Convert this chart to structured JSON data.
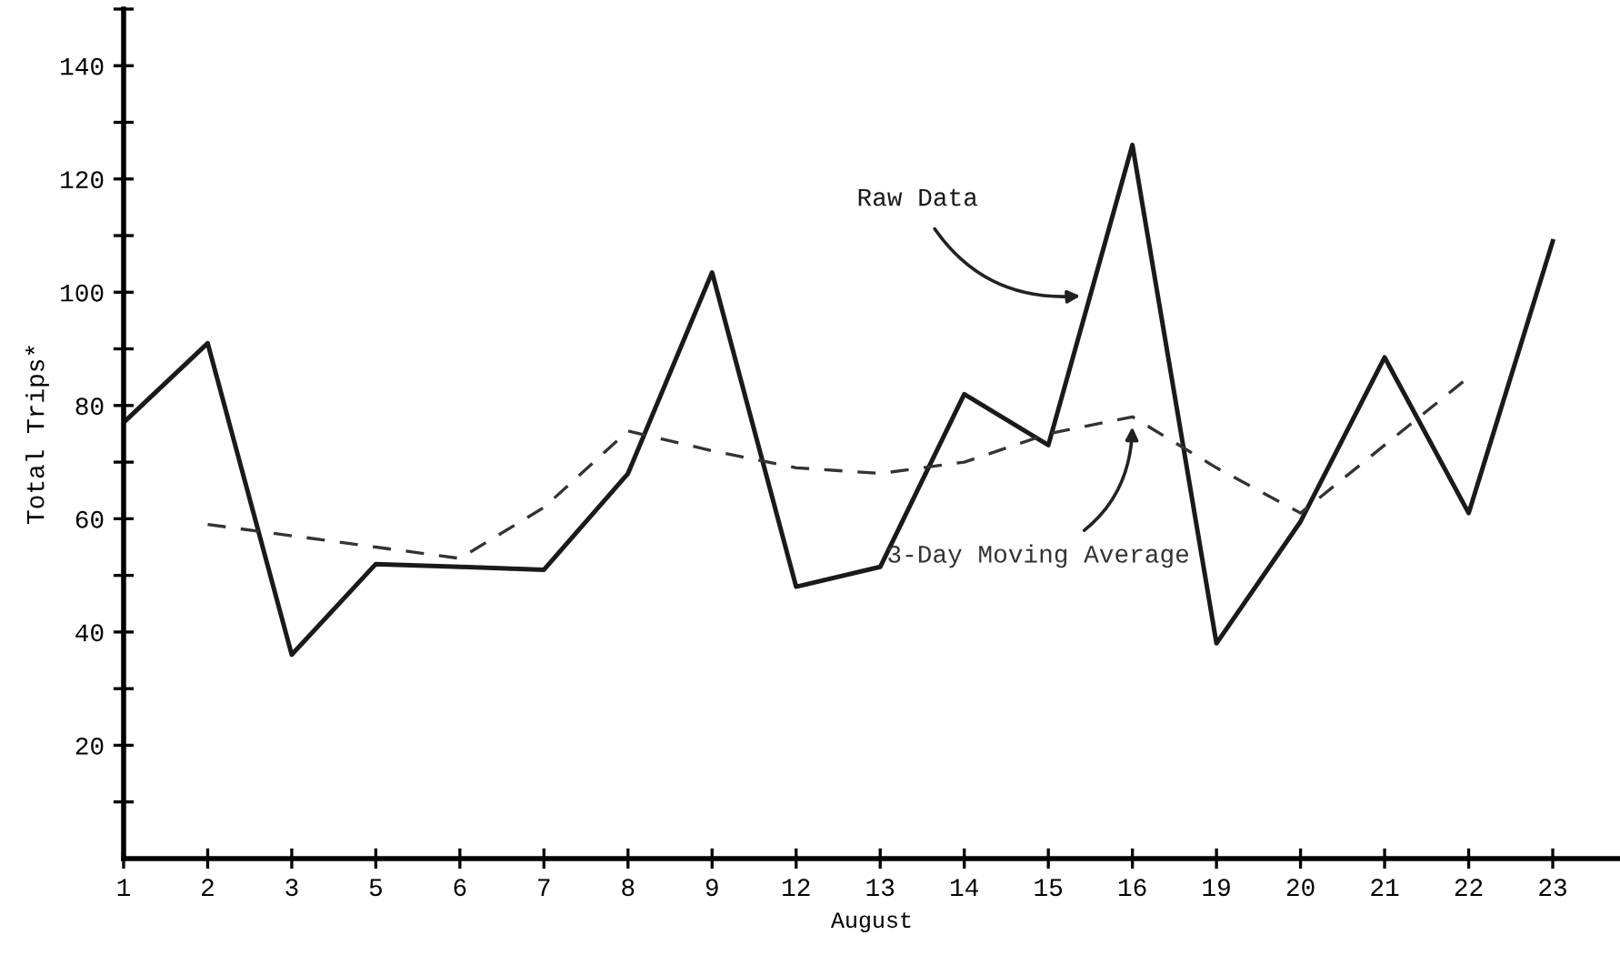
{
  "chart_data": {
    "type": "line",
    "xlabel": "August",
    "ylabel": "Total Trips*",
    "categories": [
      "1",
      "2",
      "3",
      "5",
      "6",
      "7",
      "8",
      "9",
      "12",
      "13",
      "14",
      "15",
      "16",
      "19",
      "20",
      "21",
      "22",
      "23"
    ],
    "series": [
      {
        "name": "Raw Data",
        "color": "#1a1a1a",
        "line_style": "solid",
        "values": [
          77,
          91,
          36,
          52,
          51.5,
          51,
          68,
          103.5,
          48,
          51.5,
          82,
          73,
          126,
          38,
          59.5,
          88.5,
          61,
          109
        ]
      },
      {
        "name": "3-Day Moving Average",
        "color": "#333333",
        "line_style": "dashed",
        "values": [
          null,
          59,
          57,
          55,
          53,
          62,
          75.5,
          72,
          69,
          68,
          70,
          75,
          78,
          69,
          61,
          73,
          85,
          null
        ]
      }
    ],
    "ylim": [
      0,
      150
    ],
    "yticks": [
      20,
      40,
      60,
      80,
      100,
      120,
      140
    ],
    "grid": false,
    "legend": false,
    "marker": "none"
  }
}
